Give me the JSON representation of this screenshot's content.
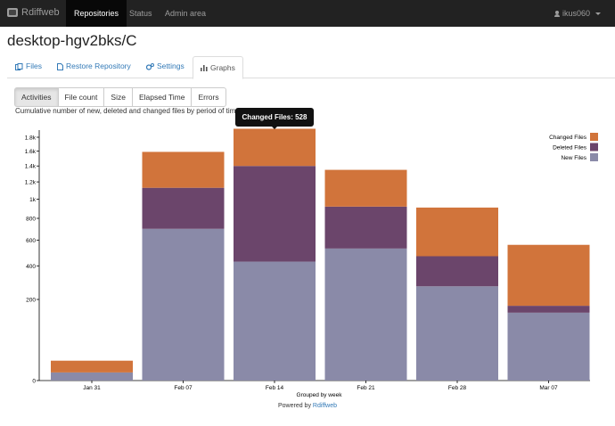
{
  "navbar": {
    "brand": "Rdiffweb",
    "items": [
      {
        "label": "Repositories",
        "active": true
      },
      {
        "label": "Status",
        "active": false
      },
      {
        "label": "Admin area",
        "active": false
      }
    ],
    "user": "ikus060"
  },
  "page_title": "desktop-hgv2bks/C",
  "tabs": [
    {
      "label": "Files",
      "icon": "files-icon"
    },
    {
      "label": "Restore Repository",
      "icon": "document-icon"
    },
    {
      "label": "Settings",
      "icon": "gears-icon"
    },
    {
      "label": "Graphs",
      "icon": "bar-chart-icon",
      "active": true
    }
  ],
  "graph_buttons": [
    {
      "label": "Activities",
      "active": true
    },
    {
      "label": "File count"
    },
    {
      "label": "Size"
    },
    {
      "label": "Elapsed Time"
    },
    {
      "label": "Errors"
    }
  ],
  "subtitle": "Cumulative number of new, deleted and changed files by period of time",
  "tooltip": "Changed Files: 528",
  "footer": {
    "powered_by": "Powered by",
    "link": "Rdiffweb"
  },
  "colors": {
    "new": "#8a8aa8",
    "deleted": "#6b456b",
    "changed": "#d1743b"
  },
  "chart_data": {
    "type": "bar",
    "stacked": true,
    "y_scale": "sqrt",
    "categories": [
      "Jan 31",
      "Feb 07",
      "Feb 14",
      "Feb 21",
      "Feb 28",
      "Mar 07"
    ],
    "series": [
      {
        "name": "New Files",
        "values": [
          2,
          700,
          430,
          530,
          270,
          140
        ]
      },
      {
        "name": "Deleted Files",
        "values": [
          0,
          430,
          970,
          390,
          200,
          30
        ]
      },
      {
        "name": "Changed Files",
        "values": [
          10,
          460,
          528,
          430,
          440,
          390
        ]
      }
    ],
    "y_ticks": [
      0,
      200,
      400,
      600,
      800,
      1000,
      1200,
      1400,
      1600,
      1800
    ],
    "y_tick_labels": [
      "0",
      "200",
      "400",
      "600",
      "800",
      "1k",
      "1.2k",
      "1.4k",
      "1.6k",
      "1.8k"
    ],
    "ylim": [
      0,
      1880
    ],
    "xlabel": "Grouped by week",
    "legend_position": "top-right",
    "grid": false
  }
}
